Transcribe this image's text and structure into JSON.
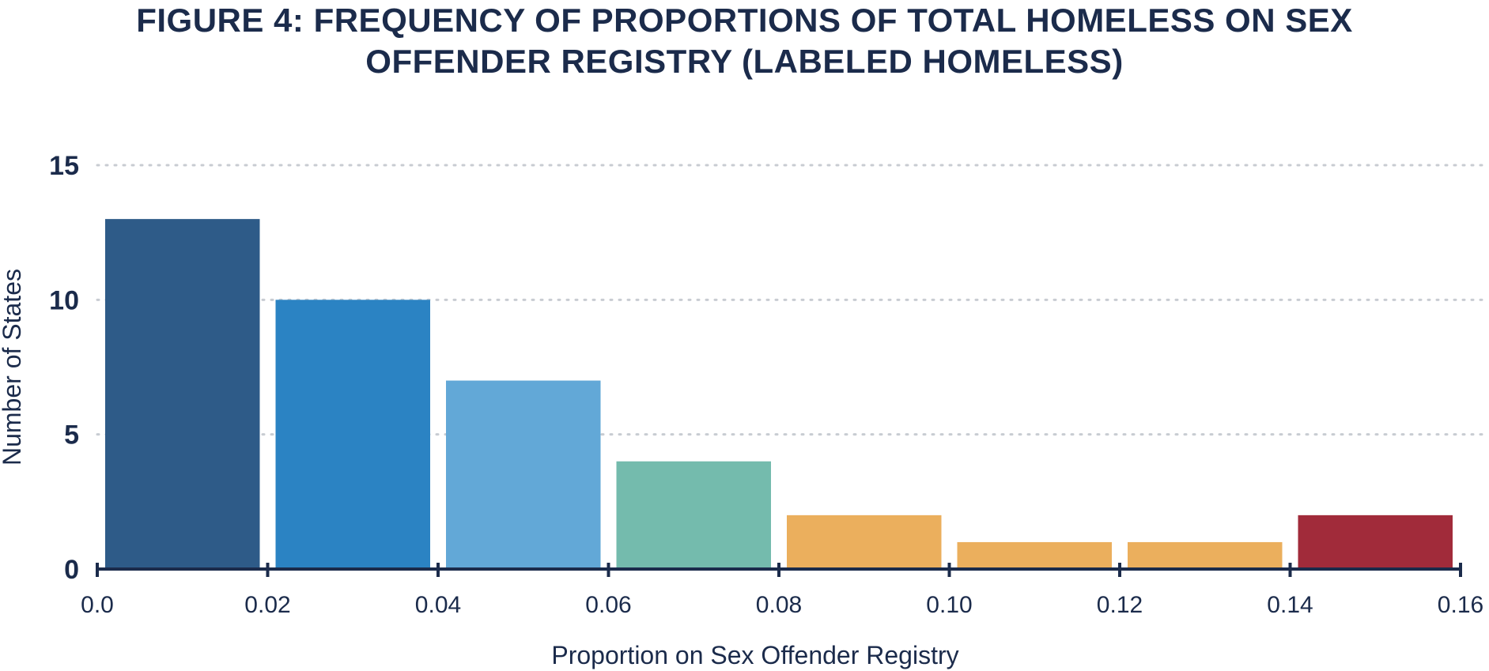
{
  "chart_data": {
    "type": "bar",
    "title": "FIGURE 4: FREQUENCY OF PROPORTIONS OF TOTAL HOMELESS ON SEX OFFENDER REGISTRY (LABELED HOMELESS)",
    "xlabel": "Proportion on Sex Offender Registry",
    "ylabel": "Number of States",
    "bins": [
      {
        "x0": 0.0,
        "x1": 0.02,
        "value": 13,
        "color": "#2e5b88"
      },
      {
        "x0": 0.02,
        "x1": 0.04,
        "value": 10,
        "color": "#2b83c3"
      },
      {
        "x0": 0.04,
        "x1": 0.06,
        "value": 7,
        "color": "#62a8d7"
      },
      {
        "x0": 0.06,
        "x1": 0.08,
        "value": 4,
        "color": "#74bbad"
      },
      {
        "x0": 0.08,
        "x1": 0.1,
        "value": 2,
        "color": "#ebaf5d"
      },
      {
        "x0": 0.1,
        "x1": 0.12,
        "value": 1,
        "color": "#ebaf5d"
      },
      {
        "x0": 0.12,
        "x1": 0.14,
        "value": 1,
        "color": "#ebaf5d"
      },
      {
        "x0": 0.14,
        "x1": 0.16,
        "value": 2,
        "color": "#a12b3a"
      }
    ],
    "x_ticks": [
      "0.0",
      "0.02",
      "0.04",
      "0.06",
      "0.08",
      "0.10",
      "0.12",
      "0.14",
      "0.16"
    ],
    "y_ticks": [
      "0",
      "5",
      "10",
      "15"
    ],
    "xlim": [
      0,
      0.16
    ],
    "ylim": [
      0,
      15
    ],
    "grid": true,
    "colors": {
      "text": "#1b2b4b",
      "axis": "#1b2b4b",
      "grid": "#c8ccd2"
    }
  }
}
